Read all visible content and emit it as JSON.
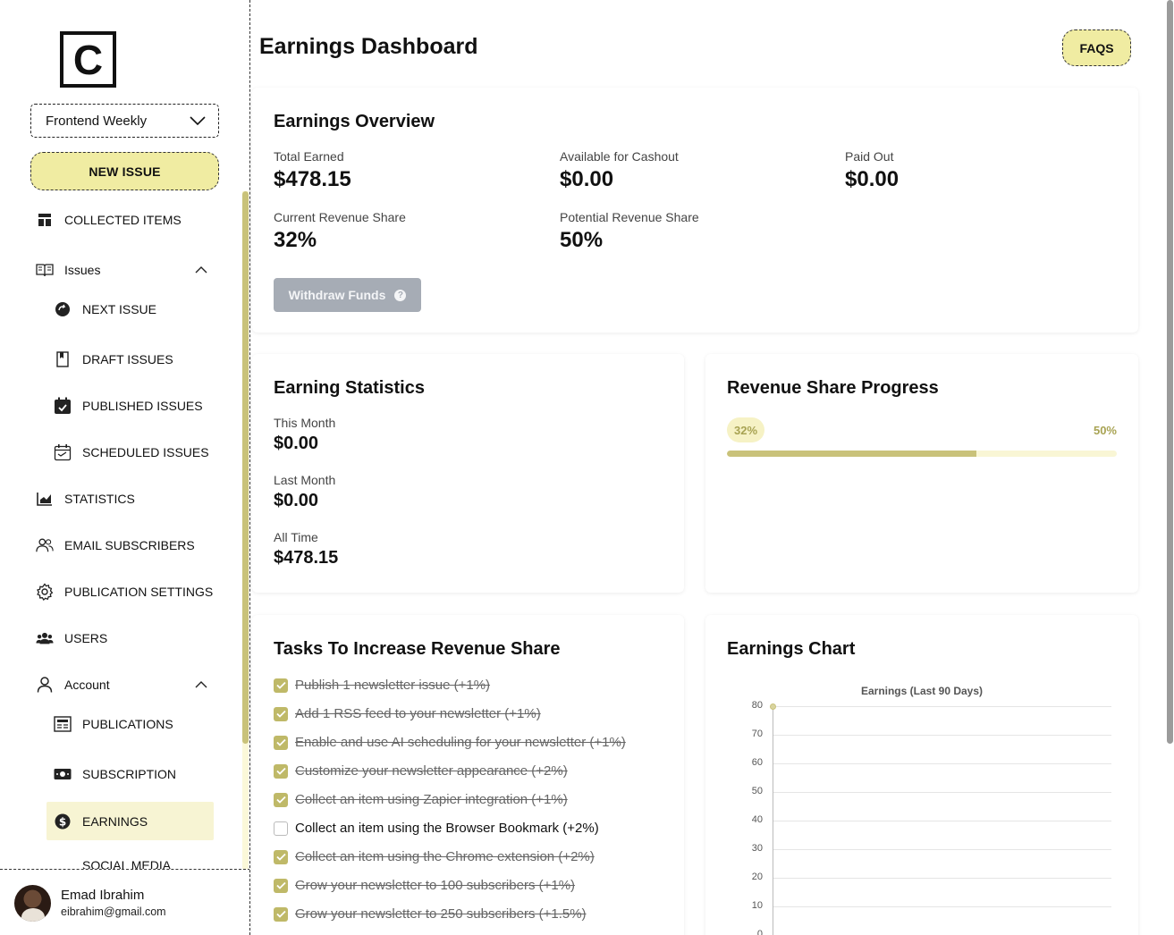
{
  "sidebar": {
    "logo_letter": "C",
    "publication": "Frontend Weekly",
    "new_issue_label": "NEW ISSUE",
    "items": {
      "collected": "COLLECTED ITEMS",
      "issues": "Issues",
      "next_issue": "NEXT ISSUE",
      "draft_issues": "DRAFT ISSUES",
      "published_issues": "PUBLISHED ISSUES",
      "scheduled_issues": "SCHEDULED ISSUES",
      "statistics": "STATISTICS",
      "email_subscribers": "EMAIL SUBSCRIBERS",
      "publication_settings": "PUBLICATION SETTINGS",
      "users": "USERS",
      "account": "Account",
      "publications": "PUBLICATIONS",
      "subscription": "SUBSCRIPTION",
      "earnings": "EARNINGS",
      "social_media": "SOCIAL MEDIA"
    },
    "user": {
      "name": "Emad Ibrahim",
      "email": "eibrahim@gmail.com"
    }
  },
  "header": {
    "title": "Earnings Dashboard",
    "faqs_label": "FAQS"
  },
  "overview": {
    "title": "Earnings Overview",
    "total_earned_label": "Total Earned",
    "total_earned": "$478.15",
    "available_label": "Available for Cashout",
    "available": "$0.00",
    "paid_out_label": "Paid Out",
    "paid_out": "$0.00",
    "current_share_label": "Current Revenue Share",
    "current_share": "32%",
    "potential_share_label": "Potential Revenue Share",
    "potential_share": "50%",
    "withdraw_label": "Withdraw Funds",
    "withdraw_help": "?"
  },
  "statistics": {
    "title": "Earning Statistics",
    "this_month_label": "This Month",
    "this_month": "$0.00",
    "last_month_label": "Last Month",
    "last_month": "$0.00",
    "all_time_label": "All Time",
    "all_time": "$478.15"
  },
  "progress": {
    "title": "Revenue Share Progress",
    "current_label": "32%",
    "target_label": "50%",
    "fill_fraction": 0.64
  },
  "tasks": {
    "title": "Tasks To Increase Revenue Share",
    "items": [
      {
        "text": "Publish 1 newsletter issue (+1%)",
        "done": true
      },
      {
        "text": "Add 1 RSS feed to your newsletter (+1%)",
        "done": true
      },
      {
        "text": "Enable and use AI scheduling for your newsletter (+1%)",
        "done": true
      },
      {
        "text": "Customize your newsletter appearance (+2%)",
        "done": true
      },
      {
        "text": "Collect an item using Zapier integration (+1%)",
        "done": true
      },
      {
        "text": "Collect an item using the Browser Bookmark (+2%)",
        "done": false
      },
      {
        "text": "Collect an item using the Chrome extension (+2%)",
        "done": true
      },
      {
        "text": "Grow your newsletter to 100 subscribers (+1%)",
        "done": true
      },
      {
        "text": "Grow your newsletter to 250 subscribers (+1.5%)",
        "done": true
      }
    ]
  },
  "earnings_chart": {
    "card_title": "Earnings Chart",
    "chart_data": {
      "type": "line",
      "title": "Earnings (Last 90 Days)",
      "xlabel": "",
      "ylabel": "",
      "ylim": [
        0,
        80
      ],
      "yticks": [
        "80",
        "70",
        "60",
        "50",
        "40",
        "30",
        "20",
        "10",
        "0"
      ],
      "grid": true,
      "series": [
        {
          "values": [
            80
          ]
        }
      ]
    }
  },
  "colors": {
    "accent": "#f0eca2",
    "accent_dark": "#c9c27a",
    "active_bg": "#f7f4d3"
  }
}
